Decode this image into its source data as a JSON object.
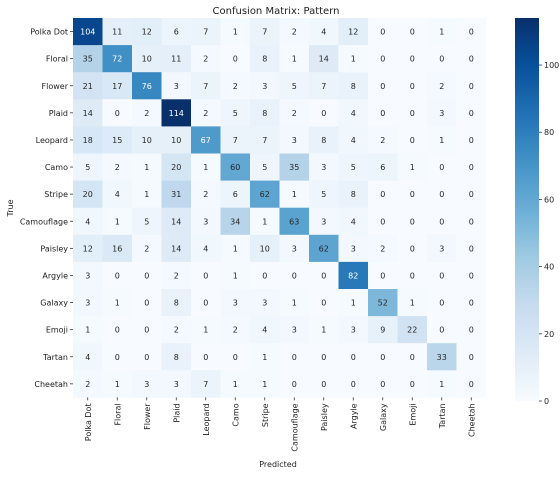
{
  "chart_data": {
    "type": "heatmap",
    "title": "Confusion Matrix: Pattern",
    "xlabel": "Predicted",
    "ylabel": "True",
    "categories": [
      "Polka Dot",
      "Floral",
      "Flower",
      "Plaid",
      "Leopard",
      "Camo",
      "Stripe",
      "Camouflage",
      "Paisley",
      "Argyle",
      "Galaxy",
      "Emoji",
      "Tartan",
      "Cheetah"
    ],
    "matrix": [
      [
        104,
        11,
        12,
        6,
        7,
        1,
        7,
        2,
        4,
        12,
        0,
        0,
        1,
        0
      ],
      [
        35,
        72,
        10,
        11,
        2,
        0,
        8,
        1,
        14,
        1,
        0,
        0,
        0,
        0
      ],
      [
        21,
        17,
        76,
        3,
        7,
        2,
        3,
        5,
        7,
        8,
        0,
        0,
        2,
        0
      ],
      [
        14,
        0,
        2,
        114,
        2,
        5,
        8,
        2,
        0,
        4,
        0,
        0,
        3,
        0
      ],
      [
        18,
        15,
        10,
        10,
        67,
        7,
        7,
        3,
        8,
        4,
        2,
        0,
        1,
        0
      ],
      [
        5,
        2,
        1,
        20,
        1,
        60,
        5,
        35,
        3,
        5,
        6,
        1,
        0,
        0
      ],
      [
        20,
        4,
        1,
        31,
        2,
        6,
        62,
        1,
        5,
        8,
        0,
        0,
        0,
        0
      ],
      [
        4,
        1,
        5,
        14,
        3,
        34,
        1,
        63,
        3,
        4,
        0,
        0,
        0,
        0
      ],
      [
        12,
        16,
        2,
        14,
        4,
        1,
        10,
        3,
        62,
        3,
        2,
        0,
        3,
        0
      ],
      [
        3,
        0,
        0,
        2,
        0,
        1,
        0,
        0,
        0,
        82,
        0,
        0,
        0,
        0
      ],
      [
        3,
        1,
        0,
        8,
        0,
        3,
        3,
        1,
        0,
        1,
        52,
        1,
        0,
        0
      ],
      [
        1,
        0,
        0,
        2,
        1,
        2,
        4,
        3,
        1,
        3,
        9,
        22,
        0,
        0
      ],
      [
        4,
        0,
        0,
        8,
        0,
        0,
        1,
        0,
        0,
        0,
        0,
        0,
        33,
        0
      ],
      [
        2,
        1,
        3,
        3,
        7,
        1,
        1,
        0,
        0,
        0,
        0,
        0,
        1,
        0
      ]
    ],
    "colorbar": {
      "range": [
        0,
        114
      ],
      "ticks": [
        0,
        20,
        40,
        60,
        80,
        100
      ]
    },
    "colormap": [
      "#f7fbff",
      "#deebf7",
      "#c6dbef",
      "#9ecae1",
      "#6baed6",
      "#4292c6",
      "#2171b5",
      "#08519c",
      "#08306b"
    ]
  }
}
